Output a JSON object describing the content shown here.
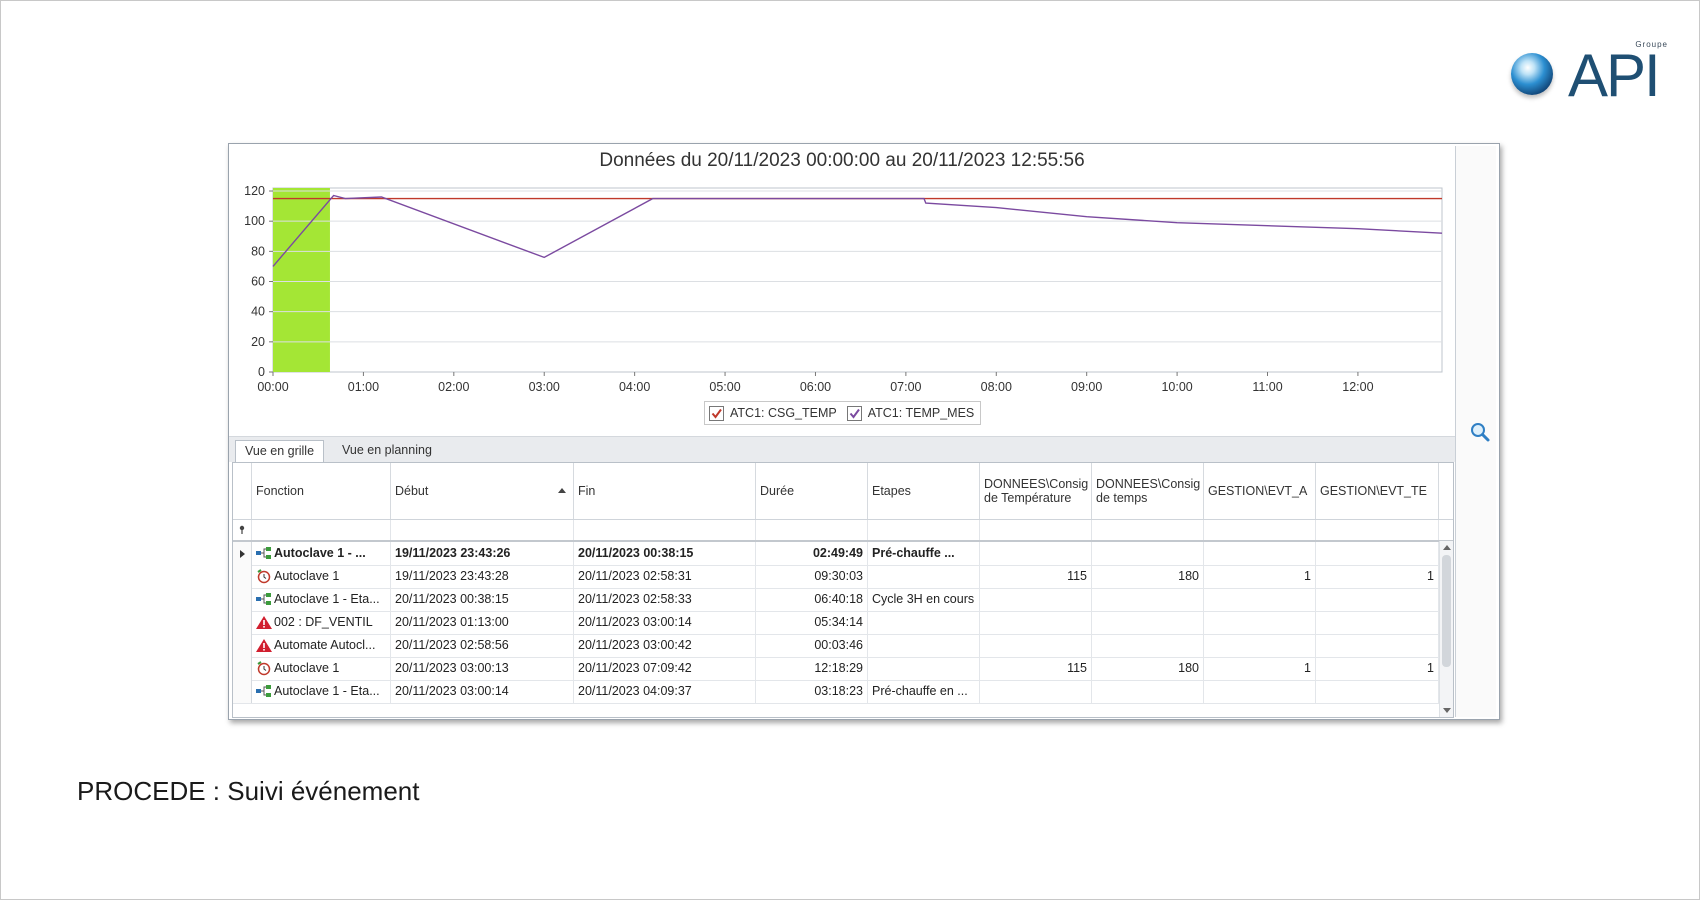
{
  "logo": {
    "small_text": "Groupe",
    "word": "API"
  },
  "chart_data": {
    "type": "line",
    "title": "Données du 20/11/2023 00:00:00 au 20/11/2023 12:55:56",
    "x_ticks": [
      "00:00",
      "01:00",
      "02:00",
      "03:00",
      "04:00",
      "05:00",
      "06:00",
      "07:00",
      "08:00",
      "09:00",
      "10:00",
      "11:00",
      "12:00"
    ],
    "y_ticks": [
      "0",
      "20",
      "40",
      "60",
      "80",
      "100",
      "120"
    ],
    "xlim_hours": [
      0,
      12.93
    ],
    "ylim": [
      0,
      122
    ],
    "grid": true,
    "legend_position": "bottom-center",
    "highlight_band": {
      "from_hours": 0,
      "to_hours": 0.63,
      "color": "#a4e635"
    },
    "series": [
      {
        "name": "ATC1: CSG_TEMP",
        "color": "#c0392b",
        "points": [
          [
            0,
            115
          ],
          [
            12.93,
            115
          ]
        ]
      },
      {
        "name": "ATC1: TEMP_MES",
        "color": "#7b4aa0",
        "points": [
          [
            0,
            70
          ],
          [
            0.67,
            117
          ],
          [
            0.8,
            115
          ],
          [
            1.2,
            116
          ],
          [
            3.0,
            76
          ],
          [
            4.2,
            115
          ],
          [
            7.2,
            115
          ],
          [
            7.22,
            112
          ],
          [
            8.0,
            109
          ],
          [
            9.0,
            103
          ],
          [
            10.0,
            99
          ],
          [
            11.0,
            97
          ],
          [
            12.0,
            95
          ],
          [
            12.93,
            92
          ]
        ]
      }
    ]
  },
  "legend": [
    {
      "label": "ATC1: CSG_TEMP",
      "color": "#c0392b"
    },
    {
      "label": "ATC1: TEMP_MES",
      "color": "#7b4aa0"
    }
  ],
  "tabs": {
    "grid": "Vue en grille",
    "planning": "Vue en planning"
  },
  "table": {
    "headers": {
      "fonction": "Fonction",
      "debut": "Début",
      "fin": "Fin",
      "duree": "Durée",
      "etapes": "Etapes",
      "consigne_temp_1": "DONNEES\\Consig",
      "consigne_temp_2": "de Température",
      "consigne_temps_1": "DONNEES\\Consig",
      "consigne_temps_2": "de temps",
      "evt_a": "GESTION\\EVT_A",
      "evt_te": "GESTION\\EVT_TE"
    },
    "rows": [
      {
        "icon": "process-icon",
        "fonction": "Autoclave 1 - ...",
        "debut": "19/11/2023 23:43:26",
        "fin": "20/11/2023 00:38:15",
        "duree": "02:49:49",
        "etapes": "Pré-chauffe ...",
        "c_temp": "",
        "c_temps": "",
        "evt_a": "",
        "evt_te": "",
        "bold": true
      },
      {
        "icon": "cycle-icon",
        "fonction": "Autoclave 1",
        "debut": "19/11/2023 23:43:28",
        "fin": "20/11/2023 02:58:31",
        "duree": "09:30:03",
        "etapes": "",
        "c_temp": "115",
        "c_temps": "180",
        "evt_a": "1",
        "evt_te": "1"
      },
      {
        "icon": "process-icon",
        "fonction": "Autoclave 1 - Eta...",
        "debut": "20/11/2023 00:38:15",
        "fin": "20/11/2023 02:58:33",
        "duree": "06:40:18",
        "etapes": "Cycle 3H en cours",
        "c_temp": "",
        "c_temps": "",
        "evt_a": "",
        "evt_te": ""
      },
      {
        "icon": "warning-icon",
        "fonction": "002 : DF_VENTIL",
        "debut": "20/11/2023 01:13:00",
        "fin": "20/11/2023 03:00:14",
        "duree": "05:34:14",
        "etapes": "",
        "c_temp": "",
        "c_temps": "",
        "evt_a": "",
        "evt_te": ""
      },
      {
        "icon": "warning-icon",
        "fonction": "Automate Autocl...",
        "debut": "20/11/2023 02:58:56",
        "fin": "20/11/2023 03:00:42",
        "duree": "00:03:46",
        "etapes": "",
        "c_temp": "",
        "c_temps": "",
        "evt_a": "",
        "evt_te": ""
      },
      {
        "icon": "cycle-icon",
        "fonction": "Autoclave 1",
        "debut": "20/11/2023 03:00:13",
        "fin": "20/11/2023 07:09:42",
        "duree": "12:18:29",
        "etapes": "",
        "c_temp": "115",
        "c_temps": "180",
        "evt_a": "1",
        "evt_te": "1"
      },
      {
        "icon": "process-icon",
        "fonction": "Autoclave 1 - Eta...",
        "debut": "20/11/2023 03:00:14",
        "fin": "20/11/2023 04:09:37",
        "duree": "03:18:23",
        "etapes": "Pré-chauffe en ...",
        "c_temp": "",
        "c_temps": "",
        "evt_a": "",
        "evt_te": ""
      }
    ]
  },
  "caption": "PROCEDE : Suivi événement"
}
